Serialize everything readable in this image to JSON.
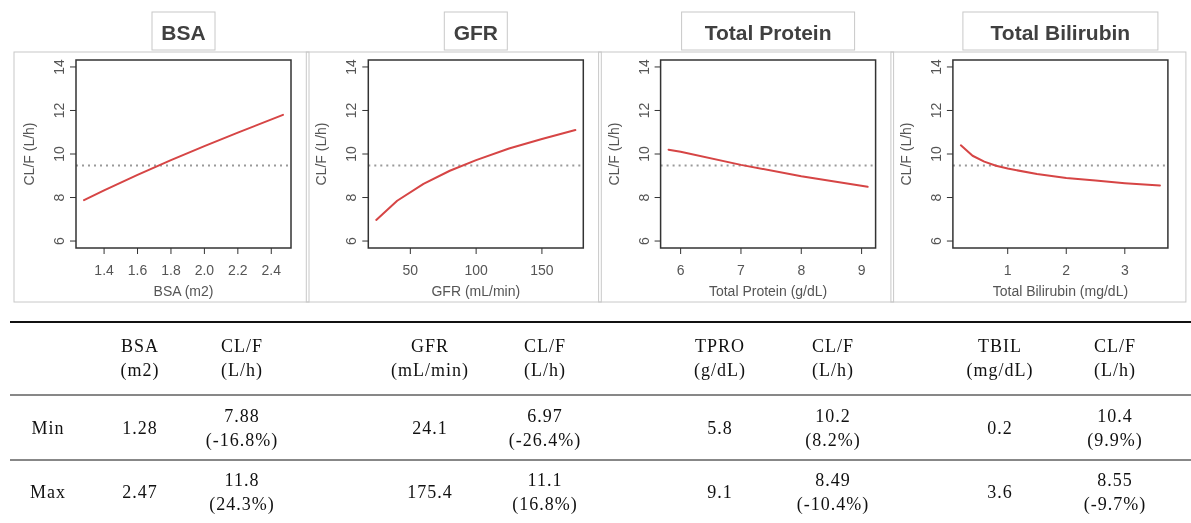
{
  "chart_data": [
    {
      "type": "line",
      "title": "BSA",
      "xlabel": "BSA (m2)",
      "ylabel": "CL/F (L/h)",
      "x": [
        1.28,
        1.4,
        1.6,
        1.8,
        2.0,
        2.2,
        2.47
      ],
      "series": [
        {
          "color": "#d64545",
          "values": [
            7.88,
            8.33,
            9.04,
            9.72,
            10.36,
            10.98,
            11.8
          ]
        }
      ],
      "xlim": [
        1.232,
        2.518
      ],
      "xticks": [
        {
          "value": 1.4,
          "label": "1.4"
        },
        {
          "value": 1.6,
          "label": "1.6"
        },
        {
          "value": 1.8,
          "label": "1.8"
        },
        {
          "value": 2.0,
          "label": "2.0"
        },
        {
          "value": 2.2,
          "label": "2.2"
        },
        {
          "value": 2.4,
          "label": "2.4"
        }
      ],
      "ylim": [
        5.68,
        14.32
      ],
      "yticks": [
        6,
        8,
        10,
        12,
        14
      ],
      "marker": "none",
      "ref_lines": [
        {
          "axis": "y",
          "value": 9.47,
          "color": "#9a9a9a",
          "line_style": "dotted"
        }
      ]
    },
    {
      "type": "line",
      "title": "GFR",
      "xlabel": "GFR (mL/min)",
      "ylabel": "CL/F (L/h)",
      "x": [
        24.1,
        40,
        60,
        80,
        100,
        125,
        150,
        175.4
      ],
      "series": [
        {
          "color": "#d64545",
          "values": [
            6.97,
            7.85,
            8.63,
            9.23,
            9.72,
            10.25,
            10.69,
            11.1
          ]
        }
      ],
      "xlim": [
        18.05,
        181.45
      ],
      "xticks": [
        50,
        100,
        150
      ],
      "ylim": [
        5.68,
        14.32
      ],
      "yticks": [
        6,
        8,
        10,
        12,
        14
      ],
      "marker": "none",
      "ref_lines": [
        {
          "axis": "y",
          "value": 9.47,
          "color": "#9a9a9a",
          "line_style": "dotted"
        }
      ]
    },
    {
      "type": "line",
      "title": "Total Protein",
      "xlabel": "Total Protein (g/dL)",
      "ylabel": "CL/F (L/h)",
      "x": [
        5.8,
        6,
        7,
        8,
        9.1
      ],
      "series": [
        {
          "color": "#d64545",
          "values": [
            10.2,
            10.1,
            9.5,
            8.98,
            8.49
          ]
        }
      ],
      "xlim": [
        5.668,
        9.232
      ],
      "xticks": [
        6,
        7,
        8,
        9
      ],
      "ylim": [
        5.68,
        14.32
      ],
      "yticks": [
        6,
        8,
        10,
        12,
        14
      ],
      "marker": "none",
      "ref_lines": [
        {
          "axis": "y",
          "value": 9.47,
          "color": "#9a9a9a",
          "line_style": "dotted"
        }
      ]
    },
    {
      "type": "line",
      "title": "Total Bilirubin",
      "xlabel": "Total Bilirubin (mg/dL)",
      "ylabel": "CL/F (L/h)",
      "x": [
        0.2,
        0.4,
        0.6,
        0.8,
        1.0,
        1.5,
        2.0,
        2.5,
        3.0,
        3.6
      ],
      "series": [
        {
          "color": "#d64545",
          "values": [
            10.4,
            9.92,
            9.65,
            9.46,
            9.33,
            9.08,
            8.9,
            8.78,
            8.66,
            8.55
          ]
        }
      ],
      "xlim": [
        0.064,
        3.736
      ],
      "xticks": [
        1,
        2,
        3
      ],
      "ylim": [
        5.68,
        14.32
      ],
      "yticks": [
        6,
        8,
        10,
        12,
        14
      ],
      "marker": "none",
      "ref_lines": [
        {
          "axis": "y",
          "value": 9.47,
          "color": "#9a9a9a",
          "line_style": "dotted"
        }
      ]
    },
    {
      "type": "other",
      "annotations": [
        "BSA\n(m2)",
        "CL/F\n(L/h)",
        "GFR\n(mL/min)",
        "CL/F\n(L/h)",
        "TPRO\n(g/dL)",
        "CL/F\n(L/h)",
        "TBIL\n(mg/dL)",
        "CL/F\n(L/h)",
        "Min",
        "1.28",
        "7.88\n(-16.8%)",
        "24.1",
        "6.97\n(-26.4%)",
        "5.8",
        "10.2\n(8.2%)",
        "0.2",
        "10.4\n(9.9%)",
        "Max",
        "2.47",
        "11.8\n(24.3%)",
        "175.4",
        "11.1\n(16.8%)",
        "9.1",
        "8.49\n(-10.4%)",
        "3.6",
        "8.55\n(-9.7%)"
      ]
    }
  ]
}
